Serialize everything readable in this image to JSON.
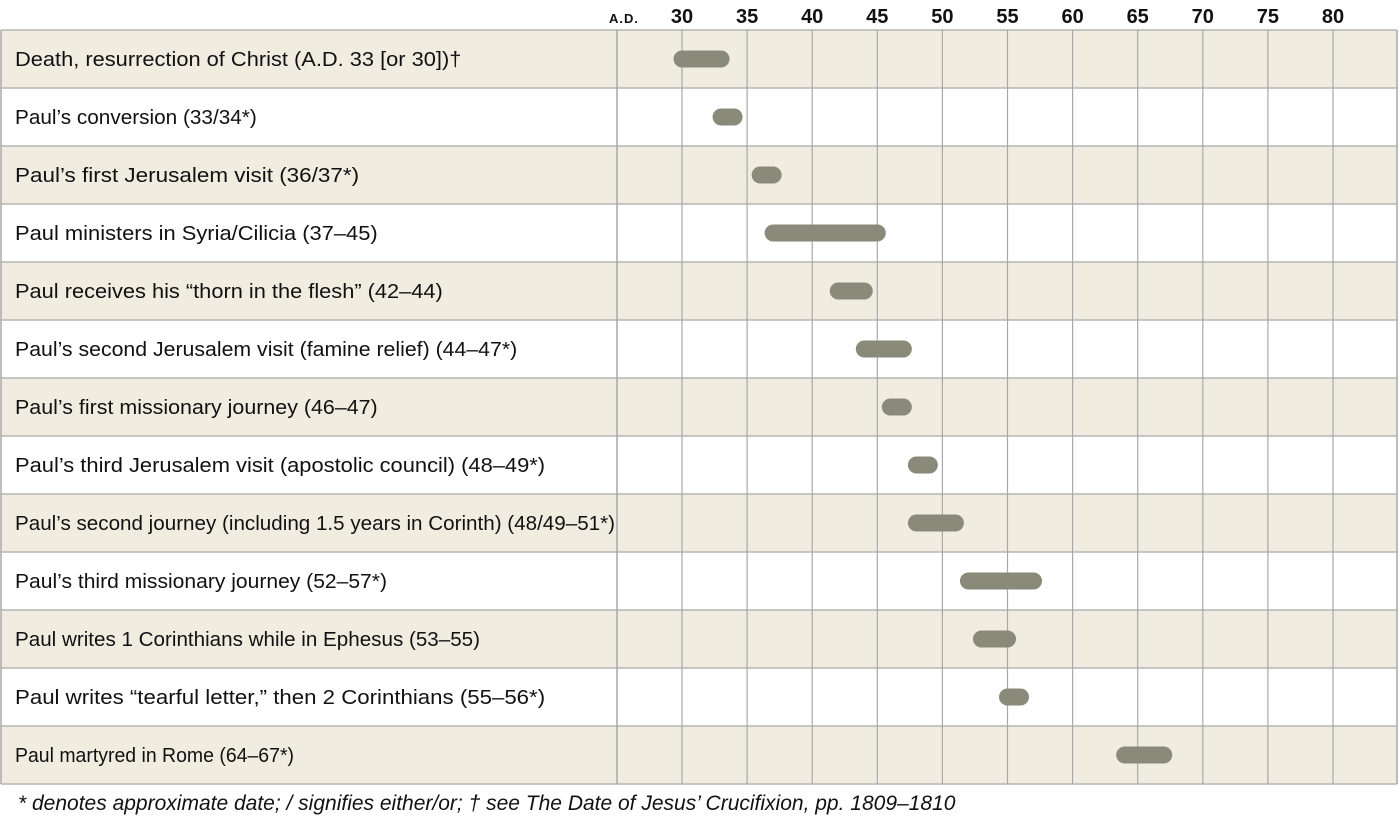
{
  "chart_data": {
    "type": "timeline",
    "title": "",
    "axis_prefix": "A.D.",
    "x_ticks": [
      30,
      35,
      40,
      45,
      50,
      55,
      60,
      65,
      70,
      75,
      80
    ],
    "xlim": [
      25,
      85
    ],
    "rows": [
      {
        "label": "Death, resurrection of Christ (A.D. 33 [or 30])†",
        "start": 30,
        "end": 33
      },
      {
        "label": "Paul’s conversion (33/34*)",
        "start": 33,
        "end": 34
      },
      {
        "label": "Paul’s first Jerusalem visit (36/37*)",
        "start": 36,
        "end": 37
      },
      {
        "label": "Paul ministers in Syria/Cilicia (37–45)",
        "start": 37,
        "end": 45
      },
      {
        "label": "Paul receives his “thorn in the flesh” (42–44)",
        "start": 42,
        "end": 44
      },
      {
        "label": "Paul’s second Jerusalem visit (famine relief) (44–47*)",
        "start": 44,
        "end": 47
      },
      {
        "label": "Paul’s first missionary journey (46–47)",
        "start": 46,
        "end": 47
      },
      {
        "label": "Paul’s third Jerusalem visit (apostolic council) (48–49*)",
        "start": 48,
        "end": 49
      },
      {
        "label": "Paul’s second journey (including 1.5 years in Corinth) (48/49–51*)",
        "start": 48,
        "end": 51
      },
      {
        "label": "Paul’s third missionary journey (52–57*)",
        "start": 52,
        "end": 57
      },
      {
        "label": "Paul writes 1 Corinthians while in Ephesus (53–55)",
        "start": 53,
        "end": 55
      },
      {
        "label": "Paul writes “tearful letter,” then 2 Corinthians (55–56*)",
        "start": 55,
        "end": 56
      },
      {
        "label": "Paul martyred in Rome (64–67*)",
        "start": 64,
        "end": 67
      }
    ],
    "colors": {
      "band": "#f0ede0",
      "bar": "#8a8a7a",
      "grid": "#a8a8a8"
    }
  },
  "footnote": "* denotes approximate date; / signifies either/or; † see The Date of Jesus’ Crucifixion, pp. 1809–1810"
}
